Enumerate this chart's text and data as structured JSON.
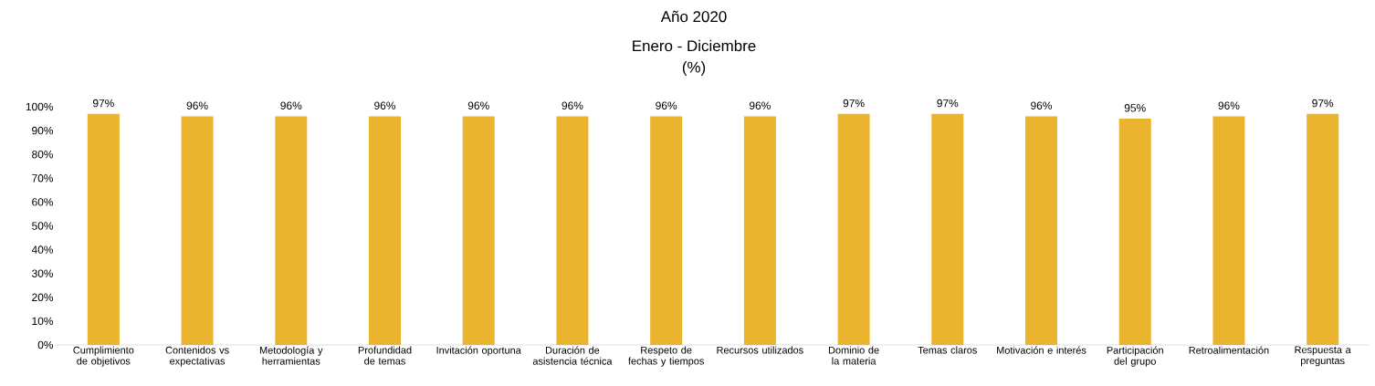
{
  "chart_data": {
    "type": "bar",
    "title": "Año 2020",
    "subtitle": "Enero - Diciembre",
    "annotations": [
      "(%)"
    ],
    "categories": [
      "Cumplimiento de objetivos",
      "Contenidos vs expectativas",
      "Metodología y herramientas",
      "Profundidad de temas",
      "Invitación oportuna",
      "Duración de asistencia técnica",
      "Respeto de fechas y tiempos",
      "Recursos utilizados",
      "Dominio de la materia",
      "Temas claros",
      "Motivación e interés",
      "Participación del grupo",
      "Retroalimentación",
      "Respuesta a preguntas"
    ],
    "values": [
      97,
      96,
      96,
      96,
      96,
      96,
      96,
      96,
      97,
      97,
      96,
      95,
      96,
      97
    ],
    "value_labels": [
      "97%",
      "96%",
      "96%",
      "96%",
      "96%",
      "96%",
      "96%",
      "96%",
      "97%",
      "97%",
      "96%",
      "95%",
      "96%",
      "97%"
    ],
    "color": "#ebb42e",
    "ylim": [
      0,
      100
    ],
    "yticks": [
      {
        "value": 0,
        "label": "0%"
      },
      {
        "value": 10,
        "label": "10%"
      },
      {
        "value": 20,
        "label": "20%"
      },
      {
        "value": 30,
        "label": "30%"
      },
      {
        "value": 40,
        "label": "40%"
      },
      {
        "value": 50,
        "label": "50%"
      },
      {
        "value": 60,
        "label": "60%"
      },
      {
        "value": 70,
        "label": "70%"
      },
      {
        "value": 80,
        "label": "80%"
      },
      {
        "value": 90,
        "label": "90%"
      },
      {
        "value": 100,
        "label": "100%"
      }
    ]
  }
}
